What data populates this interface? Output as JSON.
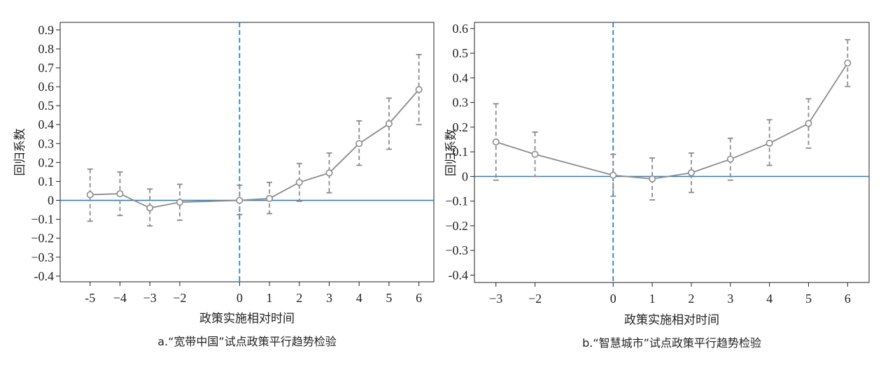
{
  "chart_data": [
    {
      "type": "line",
      "caption": "a.“宽带中国”试点政策平行趋势检验",
      "xlabel": "政策实施相对时间",
      "ylabel": "回归系数",
      "x": [
        -5,
        -4,
        -3,
        -2,
        0,
        1,
        2,
        3,
        4,
        5,
        6
      ],
      "y": [
        0.03,
        0.035,
        -0.04,
        -0.01,
        0.0,
        0.01,
        0.095,
        0.145,
        0.3,
        0.405,
        0.585
      ],
      "ci_low": [
        -0.11,
        -0.08,
        -0.135,
        -0.105,
        -0.075,
        -0.07,
        -0.005,
        0.04,
        0.185,
        0.27,
        0.4
      ],
      "ci_high": [
        0.165,
        0.15,
        0.06,
        0.085,
        0.08,
        0.095,
        0.195,
        0.25,
        0.42,
        0.54,
        0.77
      ],
      "xticks": [
        -5,
        -4,
        -3,
        -2,
        0,
        1,
        2,
        3,
        4,
        5,
        6
      ],
      "xtick_labels": [
        "-5",
        "−4",
        "−3",
        "−2",
        "0",
        "1",
        "2",
        "3",
        "4",
        "5",
        "6"
      ],
      "yticks": [
        -0.4,
        -0.3,
        -0.2,
        -0.1,
        0,
        0.1,
        0.2,
        0.3,
        0.4,
        0.5,
        0.6,
        0.7,
        0.8,
        0.9
      ],
      "ytick_labels": [
        "-0.4",
        "−0.3",
        "−0.2",
        "−0.1",
        "0",
        "0.1",
        "0.2",
        "0.3",
        "0.4",
        "0.5",
        "0.6",
        "0.7",
        "0.8",
        "0.9"
      ],
      "xlim": [
        -6,
        6.5
      ],
      "ylim": [
        -0.43,
        0.94
      ],
      "reference_hline": 0,
      "reference_vline": 0,
      "grid": false,
      "colors": {
        "series": "#8c8c8c",
        "reference": "#2f7fc1",
        "axis": "#222222"
      }
    },
    {
      "type": "line",
      "caption": "b.“智慧城市”试点政策平行趋势检验",
      "xlabel": "政策实施相对时间",
      "ylabel": "回归系数",
      "x": [
        -3,
        -2,
        0,
        1,
        2,
        3,
        4,
        5,
        6
      ],
      "y": [
        0.14,
        0.09,
        0.005,
        -0.01,
        0.015,
        0.07,
        0.135,
        0.215,
        0.46
      ],
      "ci_low": [
        -0.015,
        0.0,
        -0.08,
        -0.095,
        -0.065,
        -0.015,
        0.045,
        0.115,
        0.365
      ],
      "ci_high": [
        0.295,
        0.18,
        0.09,
        0.075,
        0.095,
        0.155,
        0.23,
        0.315,
        0.555
      ],
      "xticks": [
        -3,
        -2,
        0,
        1,
        2,
        3,
        4,
        5,
        6
      ],
      "xtick_labels": [
        "−3",
        "−2",
        "0",
        "1",
        "2",
        "3",
        "4",
        "5",
        "6"
      ],
      "yticks": [
        -0.4,
        -0.3,
        -0.2,
        -0.1,
        0,
        0.1,
        0.2,
        0.3,
        0.4,
        0.5,
        0.6
      ],
      "ytick_labels": [
        "-0.4",
        "−0.3",
        "−0.2",
        "−0.1",
        "0",
        "0.1",
        "0.2",
        "0.3",
        "0.4",
        "0.5",
        "0.6"
      ],
      "xlim": [
        -3.55,
        6.55
      ],
      "ylim": [
        -0.43,
        0.625
      ],
      "reference_hline": 0,
      "reference_vline": 0,
      "grid": false,
      "colors": {
        "series": "#8c8c8c",
        "reference": "#2f7fc1",
        "axis": "#222222"
      }
    }
  ]
}
